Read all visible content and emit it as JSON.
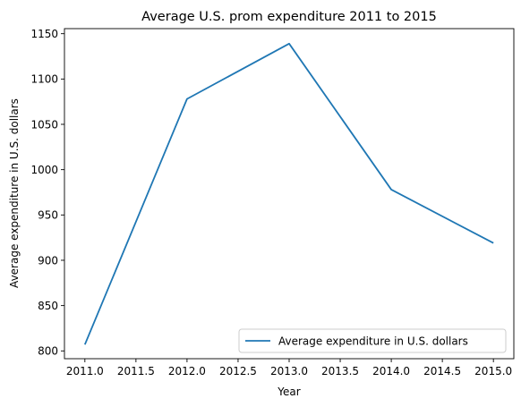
{
  "chart_data": {
    "type": "line",
    "title": "Average U.S. prom expenditure 2011 to 2015",
    "xlabel": "Year",
    "ylabel": "Average expenditure in U.S. dollars",
    "x": [
      2011,
      2012,
      2013,
      2014,
      2015
    ],
    "series": [
      {
        "name": "Average expenditure in U.S. dollars",
        "values": [
          807,
          1078,
          1139,
          978,
          919
        ],
        "color": "#1f77b4"
      }
    ],
    "xlim": [
      2010.8,
      2015.2
    ],
    "ylim": [
      791.4,
      1155.6
    ],
    "xticks": [
      "2011.0",
      "2011.5",
      "2012.0",
      "2012.5",
      "2013.0",
      "2013.5",
      "2014.0",
      "2014.5",
      "2015.0"
    ],
    "yticks": [
      "800",
      "850",
      "900",
      "950",
      "1000",
      "1050",
      "1100",
      "1150"
    ],
    "grid": false,
    "legend_position": "lower-right"
  }
}
